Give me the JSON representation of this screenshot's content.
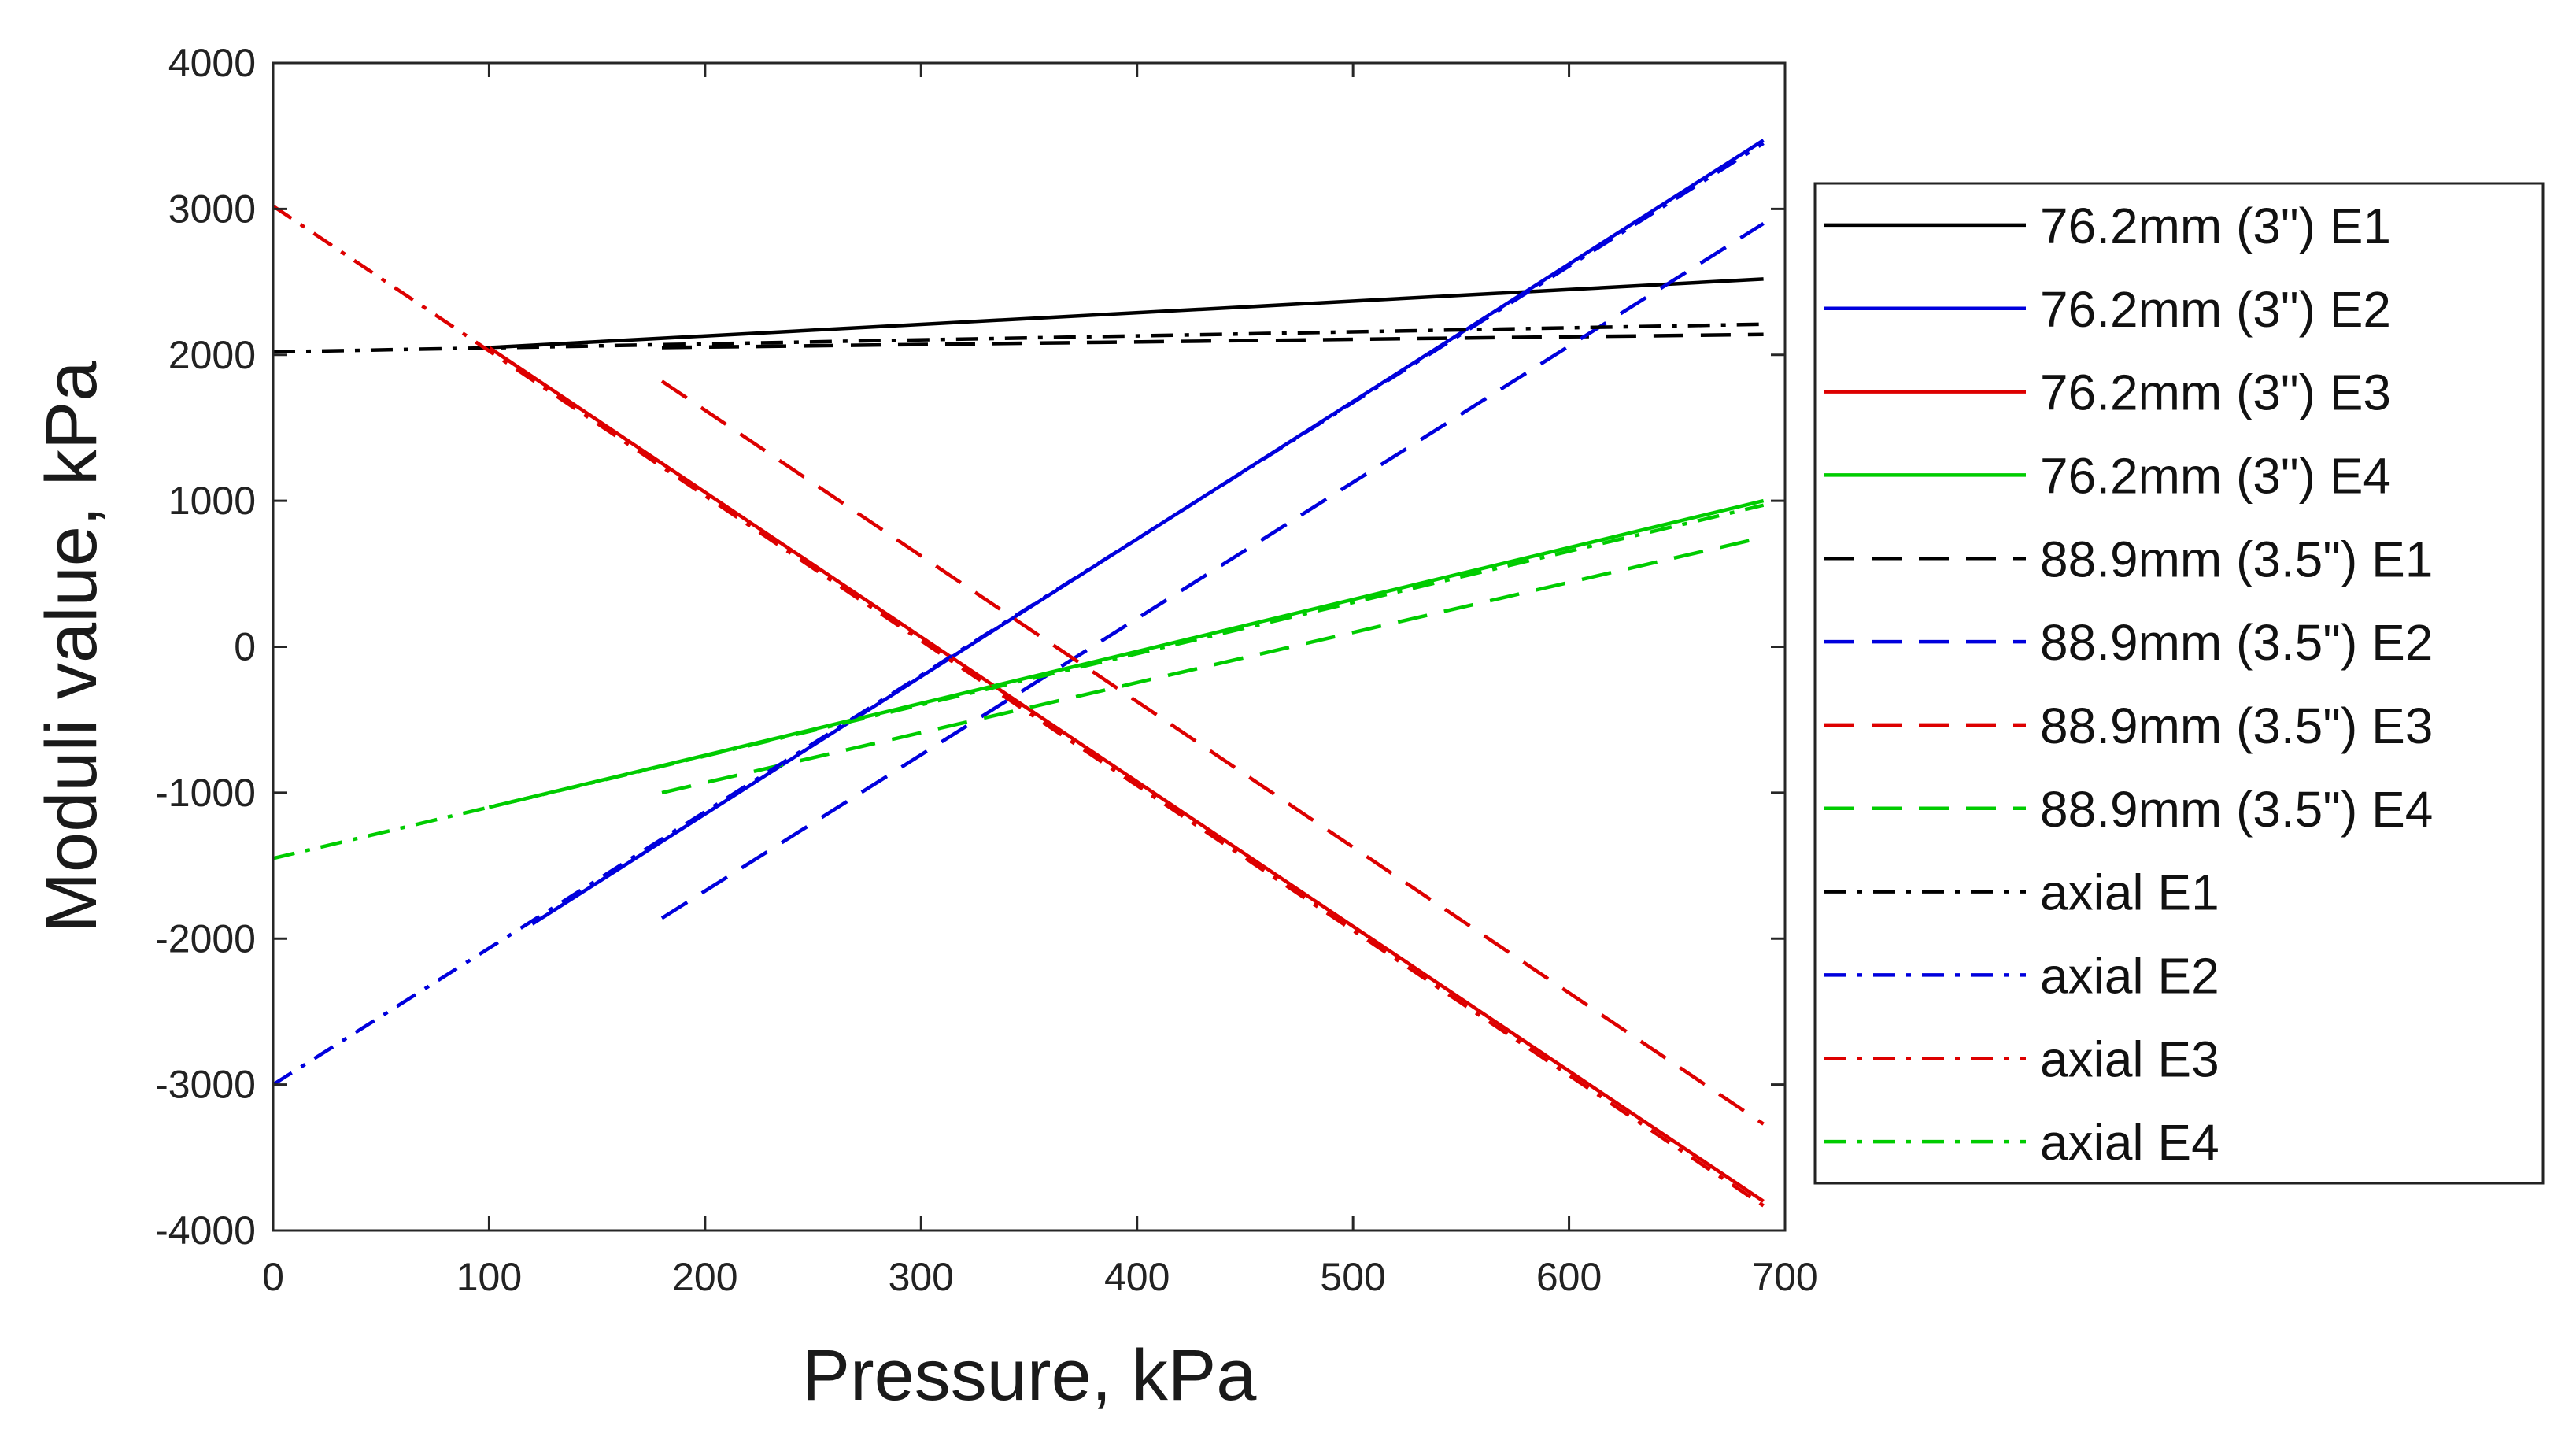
{
  "chart_data": {
    "type": "line",
    "title": "",
    "xlabel": "Pressure, kPa",
    "ylabel": "Moduli value, kPa",
    "xlim": [
      0,
      700
    ],
    "ylim": [
      -4000,
      4000
    ],
    "xticks": [
      0,
      100,
      200,
      300,
      400,
      500,
      600,
      700
    ],
    "yticks": [
      -4000,
      -3000,
      -2000,
      -1000,
      0,
      1000,
      2000,
      3000,
      4000
    ],
    "grid": false,
    "legend_position": "right",
    "series": [
      {
        "name": "76.2mm (3\") E1",
        "color": "#000000",
        "style": "solid",
        "x": [
          100,
          690
        ],
        "y": [
          2050,
          2520
        ]
      },
      {
        "name": "76.2mm (3\") E2",
        "color": "#0000dd",
        "style": "solid",
        "x": [
          120,
          690
        ],
        "y": [
          -1900,
          3470
        ]
      },
      {
        "name": "76.2mm (3\") E3",
        "color": "#dd0000",
        "style": "solid",
        "x": [
          100,
          690
        ],
        "y": [
          2050,
          -3800
        ]
      },
      {
        "name": "76.2mm (3\") E4",
        "color": "#00cc00",
        "style": "solid",
        "x": [
          100,
          690
        ],
        "y": [
          -1100,
          1000
        ]
      },
      {
        "name": "88.9mm (3.5\") E1",
        "color": "#000000",
        "style": "dashed",
        "x": [
          180,
          690
        ],
        "y": [
          2050,
          2140
        ]
      },
      {
        "name": "88.9mm (3.5\") E2",
        "color": "#0000dd",
        "style": "dashed",
        "x": [
          180,
          690
        ],
        "y": [
          -1860,
          2900
        ]
      },
      {
        "name": "88.9mm (3.5\") E3",
        "color": "#dd0000",
        "style": "dashed",
        "x": [
          180,
          690
        ],
        "y": [
          1820,
          -3270
        ]
      },
      {
        "name": "88.9mm (3.5\") E4",
        "color": "#00cc00",
        "style": "dashed",
        "x": [
          180,
          690
        ],
        "y": [
          -1000,
          750
        ]
      },
      {
        "name": "axial E1",
        "color": "#000000",
        "style": "dashdot",
        "x": [
          0,
          690
        ],
        "y": [
          2020,
          2210
        ]
      },
      {
        "name": "axial E2",
        "color": "#0000dd",
        "style": "dashdot",
        "x": [
          0,
          690
        ],
        "y": [
          -3000,
          3450
        ]
      },
      {
        "name": "axial E3",
        "color": "#dd0000",
        "style": "dashdot",
        "x": [
          0,
          690
        ],
        "y": [
          3020,
          -3830
        ]
      },
      {
        "name": "axial E4",
        "color": "#00cc00",
        "style": "dashdot",
        "x": [
          0,
          690
        ],
        "y": [
          -1450,
          970
        ]
      }
    ]
  }
}
